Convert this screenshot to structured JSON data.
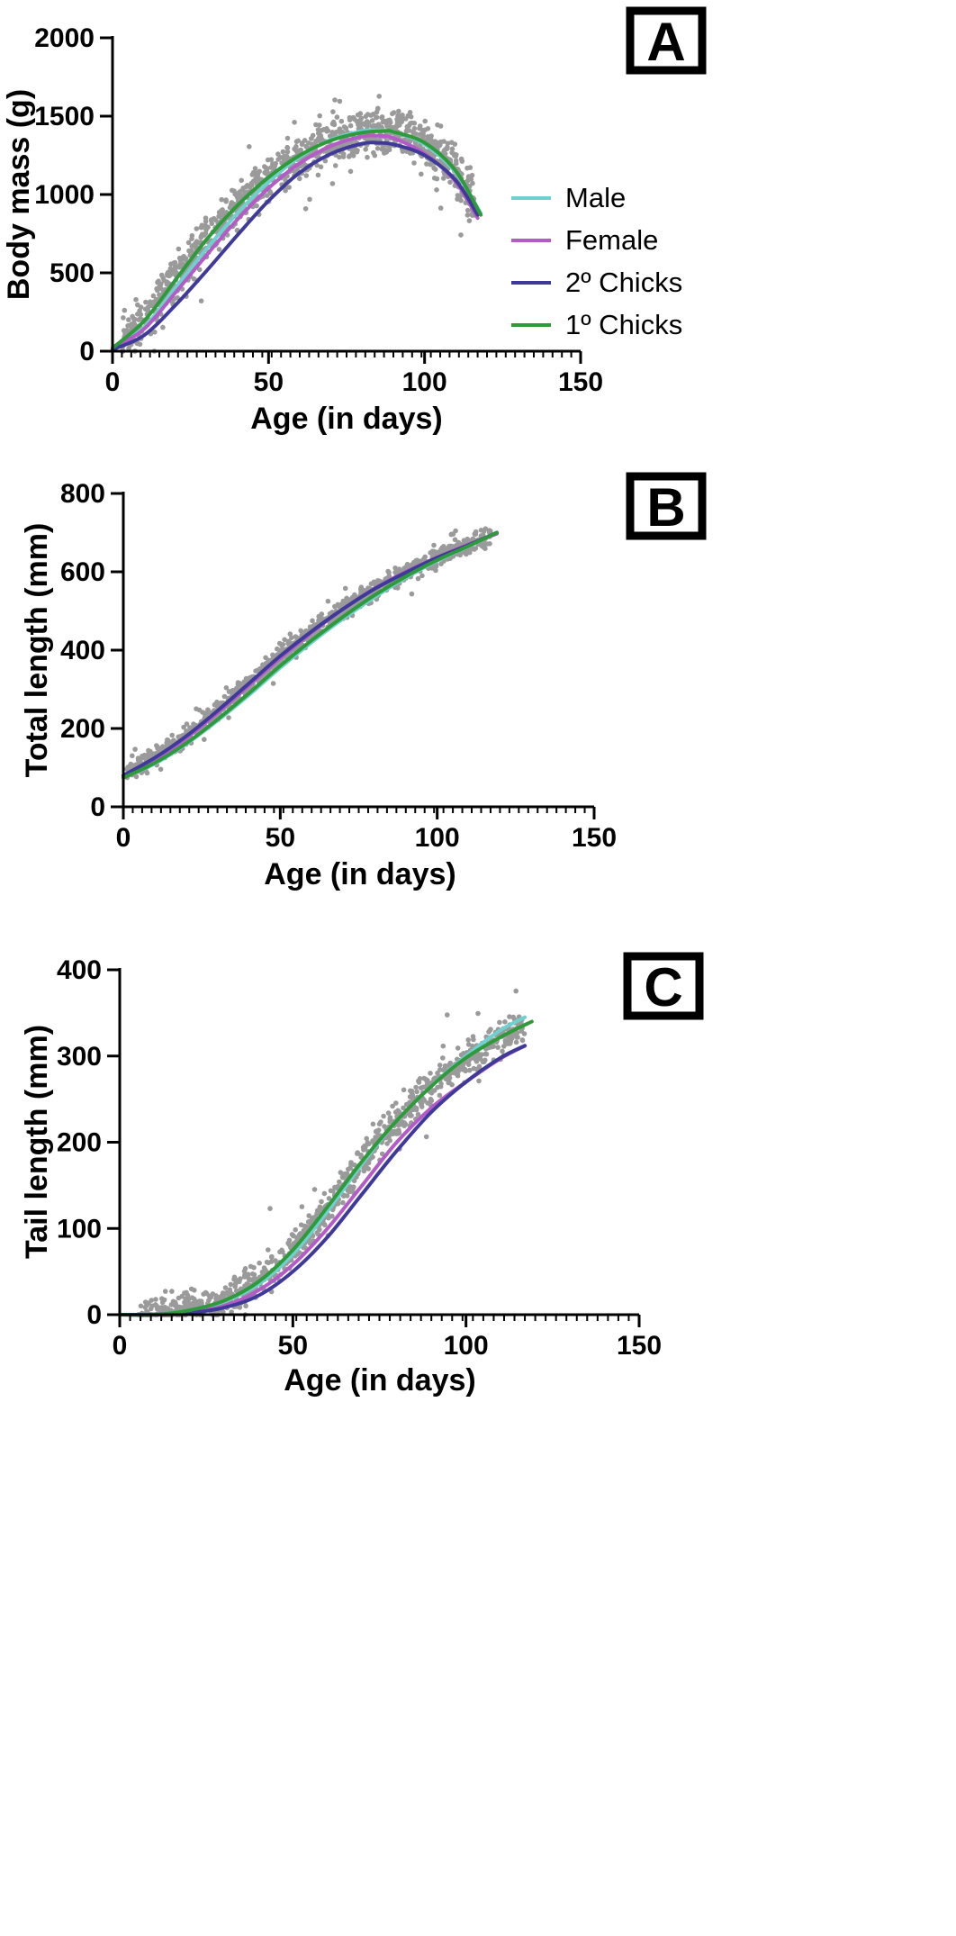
{
  "colors": {
    "male": "#6fd1cf",
    "female": "#b45bc8",
    "chicks2": "#3f3a9a",
    "chicks1": "#2e9a3a",
    "scatter": "#9a9a9a"
  },
  "chart_data": [
    {
      "panel": "A",
      "type": "scatter",
      "xlabel": "Age (in days)",
      "ylabel": "Body mass (g)",
      "xlim": [
        0,
        150
      ],
      "ylim": [
        0,
        2000
      ],
      "xticks": [
        0,
        50,
        100,
        150
      ],
      "yticks": [
        0,
        500,
        1000,
        1500,
        2000
      ],
      "x_minor_step": 3,
      "legend_position": "right",
      "legend": [
        {
          "label": "Male",
          "color_key": "male"
        },
        {
          "label": "Female",
          "color_key": "female"
        },
        {
          "label": "2º Chicks",
          "color_key": "chicks2"
        },
        {
          "label": "1º Chicks",
          "color_key": "chicks1"
        }
      ],
      "series": [
        {
          "name": "Male",
          "color_key": "male",
          "x": [
            0,
            10,
            20,
            30,
            40,
            50,
            60,
            70,
            80,
            85,
            90,
            100,
            110,
            118
          ],
          "y": [
            20,
            150,
            400,
            650,
            880,
            1080,
            1240,
            1350,
            1405,
            1410,
            1400,
            1320,
            1140,
            880
          ]
        },
        {
          "name": "Female",
          "color_key": "female",
          "x": [
            0,
            10,
            20,
            30,
            40,
            50,
            60,
            70,
            80,
            85,
            90,
            100,
            110,
            117
          ],
          "y": [
            20,
            140,
            370,
            610,
            840,
            1040,
            1200,
            1310,
            1370,
            1375,
            1360,
            1260,
            1080,
            850
          ]
        },
        {
          "name": "2º Chicks",
          "color_key": "chicks2",
          "x": [
            0,
            10,
            20,
            30,
            40,
            50,
            60,
            70,
            80,
            85,
            90,
            100,
            110,
            117
          ],
          "y": [
            10,
            100,
            290,
            510,
            740,
            960,
            1140,
            1260,
            1325,
            1330,
            1320,
            1250,
            1090,
            870
          ]
        },
        {
          "name": "1º Chicks",
          "color_key": "chicks1",
          "x": [
            0,
            10,
            20,
            30,
            40,
            50,
            60,
            70,
            80,
            87,
            90,
            100,
            110,
            118
          ],
          "y": [
            20,
            190,
            450,
            710,
            930,
            1110,
            1250,
            1345,
            1395,
            1405,
            1400,
            1330,
            1150,
            870
          ]
        }
      ],
      "scatter": {
        "seed": 11,
        "n": 1100,
        "x_range": [
          3,
          116
        ],
        "curve_series": 3,
        "noise": [
          70,
          150
        ]
      }
    },
    {
      "panel": "B",
      "type": "scatter",
      "xlabel": "Age (in days)",
      "ylabel": "Total length (mm)",
      "xlim": [
        0,
        150
      ],
      "ylim": [
        0,
        800
      ],
      "xticks": [
        0,
        50,
        100,
        150
      ],
      "yticks": [
        0,
        200,
        400,
        600,
        800
      ],
      "x_minor_step": 3,
      "series": [
        {
          "name": "Male",
          "color_key": "male",
          "x": [
            0,
            10,
            20,
            30,
            40,
            50,
            60,
            70,
            80,
            90,
            100,
            110,
            119
          ],
          "y": [
            75,
            110,
            160,
            220,
            285,
            355,
            420,
            480,
            535,
            585,
            628,
            665,
            700
          ]
        },
        {
          "name": "Female",
          "color_key": "female",
          "x": [
            0,
            10,
            20,
            30,
            40,
            50,
            60,
            70,
            80,
            90,
            100,
            110,
            119
          ],
          "y": [
            78,
            120,
            175,
            240,
            310,
            380,
            445,
            505,
            557,
            600,
            637,
            670,
            697
          ]
        },
        {
          "name": "2º Chicks",
          "color_key": "chicks2",
          "x": [
            0,
            10,
            20,
            30,
            40,
            50,
            60,
            70,
            80,
            90,
            100,
            110,
            119
          ],
          "y": [
            80,
            125,
            180,
            245,
            315,
            385,
            448,
            505,
            556,
            598,
            636,
            668,
            700
          ]
        },
        {
          "name": "1º Chicks",
          "color_key": "chicks1",
          "x": [
            0,
            10,
            20,
            30,
            40,
            50,
            60,
            70,
            80,
            90,
            100,
            110,
            119
          ],
          "y": [
            74,
            112,
            162,
            223,
            290,
            360,
            425,
            485,
            540,
            588,
            630,
            666,
            700
          ]
        }
      ],
      "scatter": {
        "seed": 23,
        "n": 1000,
        "x_range": [
          1,
          117
        ],
        "curve_series": 2,
        "noise": [
          12,
          30
        ]
      }
    },
    {
      "panel": "C",
      "type": "scatter",
      "xlabel": "Age (in days)",
      "ylabel": "Tail length (mm)",
      "xlim": [
        0,
        150
      ],
      "ylim": [
        0,
        400
      ],
      "xticks": [
        0,
        50,
        100,
        150
      ],
      "yticks": [
        0,
        100,
        200,
        300,
        400
      ],
      "x_minor_step": 3,
      "series": [
        {
          "name": "Male",
          "color_key": "male",
          "x": [
            0,
            10,
            20,
            30,
            40,
            50,
            60,
            70,
            80,
            90,
            100,
            110,
            117
          ],
          "y": [
            0,
            0,
            5,
            15,
            35,
            70,
            120,
            175,
            225,
            265,
            300,
            330,
            345
          ]
        },
        {
          "name": "Female",
          "color_key": "female",
          "x": [
            0,
            10,
            20,
            30,
            40,
            50,
            60,
            70,
            80,
            90,
            100,
            110,
            117
          ],
          "y": [
            0,
            0,
            3,
            10,
            28,
            58,
            100,
            150,
            200,
            240,
            270,
            297,
            312
          ]
        },
        {
          "name": "2º Chicks",
          "color_key": "chicks2",
          "x": [
            0,
            10,
            20,
            30,
            40,
            50,
            60,
            70,
            80,
            90,
            100,
            110,
            117
          ],
          "y": [
            0,
            0,
            2,
            8,
            22,
            50,
            90,
            140,
            190,
            235,
            270,
            298,
            312
          ]
        },
        {
          "name": "1º Chicks",
          "color_key": "chicks1",
          "x": [
            0,
            10,
            20,
            30,
            40,
            50,
            60,
            70,
            80,
            90,
            100,
            110,
            119
          ],
          "y": [
            0,
            0,
            5,
            16,
            38,
            75,
            125,
            178,
            225,
            265,
            298,
            322,
            340
          ]
        }
      ],
      "scatter": {
        "seed": 37,
        "n": 1000,
        "x_range": [
          5,
          117
        ],
        "curve_series": 3,
        "noise": [
          10,
          25
        ]
      }
    }
  ]
}
